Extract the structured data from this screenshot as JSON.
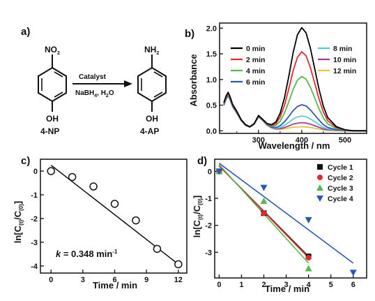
{
  "panels": {
    "a": {
      "label": "a)",
      "reactant": {
        "substituent_top": "NO",
        "substituent_top_sub": "2",
        "substituent_bottom": "OH",
        "name": "4-NP"
      },
      "product": {
        "substituent_top": "NH",
        "substituent_top_sub": "2",
        "substituent_bottom": "OH",
        "name": "4-AP"
      },
      "arrow_top": "Catalyst",
      "arrow_bottom_1": "NaBH",
      "arrow_bottom_sub": "4",
      "arrow_bottom_2": ", H",
      "arrow_bottom_sub2": "2",
      "arrow_bottom_3": "O"
    },
    "b": {
      "label": "b)"
    },
    "c": {
      "label": "c)",
      "annotation_k": "k",
      "annotation_rest": " = 0.348 min",
      "annotation_sup": "-1"
    },
    "d": {
      "label": "d)"
    }
  },
  "chart_data": [
    {
      "panel": "b",
      "type": "line",
      "xlabel": "Wavelength / nm",
      "ylabel": "Absorbance",
      "xlim": [
        210,
        550
      ],
      "ylim": [
        -0.05,
        2.1
      ],
      "xticks": [
        300,
        400,
        500
      ],
      "yticks": [
        0.0,
        0.5,
        1.0,
        1.5,
        2.0
      ],
      "ytick_labels": [
        "0.0",
        "0.5",
        "1.0",
        "1.5",
        "2.0"
      ],
      "legend_placement": "top",
      "series": [
        {
          "name": "0 min",
          "color": "#000000",
          "peak": 2.0
        },
        {
          "name": "2 min",
          "color": "#e8262e",
          "peak": 1.53
        },
        {
          "name": "4 min",
          "color": "#56b848",
          "peak": 1.05
        },
        {
          "name": "6 min",
          "color": "#2a56b8",
          "peak": 0.5
        },
        {
          "name": "8 min",
          "color": "#5ac8d8",
          "peak": 0.28
        },
        {
          "name": "10 min",
          "color": "#a23a9a",
          "peak": 0.15
        },
        {
          "name": "12 min",
          "color": "#e8c23a",
          "peak": 0.07
        }
      ],
      "x": [
        220,
        225,
        230,
        235,
        240,
        250,
        260,
        270,
        280,
        290,
        300,
        310,
        320,
        330,
        340,
        350,
        360,
        370,
        380,
        390,
        400,
        410,
        420,
        430,
        440,
        450,
        460,
        480,
        500,
        520,
        550
      ],
      "base_profile": [
        0.55,
        0.68,
        0.75,
        0.65,
        0.52,
        0.38,
        0.22,
        0.12,
        0.08,
        0.14,
        0.3,
        0.22,
        0.12,
        0.06,
        0.03,
        0.02,
        0.02,
        0.02,
        0.02,
        0.01,
        0.01,
        0.01,
        0.01,
        0.01,
        0.01,
        0.0,
        0.0,
        0.0,
        0.0,
        0.0,
        0.0
      ],
      "peak_profile": [
        0,
        0,
        0,
        0,
        0,
        0,
        0,
        0,
        0,
        0,
        0,
        0,
        0.01,
        0.03,
        0.07,
        0.16,
        0.31,
        0.52,
        0.75,
        0.93,
        1.0,
        0.95,
        0.8,
        0.6,
        0.4,
        0.24,
        0.13,
        0.04,
        0.01,
        0.0,
        0.0
      ]
    },
    {
      "panel": "c",
      "type": "scatter",
      "xlabel": "Time / min",
      "ylabel": "ln[C(t)/C(0)]",
      "xlim": [
        -1,
        12.8
      ],
      "ylim": [
        -4.3,
        0.5
      ],
      "xticks": [
        0,
        3,
        6,
        9,
        12
      ],
      "yticks": [
        0,
        -1,
        -2,
        -3,
        -4
      ],
      "x": [
        0,
        2,
        4,
        6,
        8,
        10,
        12
      ],
      "y": [
        0.0,
        -0.25,
        -0.65,
        -1.38,
        -2.08,
        -3.28,
        -3.93
      ],
      "fit": {
        "slope": -0.348,
        "intercept": 0.25,
        "x_range": [
          0,
          12
        ]
      }
    },
    {
      "panel": "d",
      "type": "scatter",
      "xlabel": "Time / min",
      "ylabel": "ln[C(t)/C(0)]",
      "xlim": [
        -0.2,
        6.6
      ],
      "ylim": [
        -3.95,
        0.45
      ],
      "xticks": [
        0,
        1,
        2,
        3,
        4,
        5,
        6
      ],
      "yticks": [
        0,
        -1,
        -2,
        -3
      ],
      "legend_placement": "top-right",
      "series": [
        {
          "name": "Cycle 1",
          "color": "#111111",
          "marker": "square",
          "x": [
            0,
            2,
            4
          ],
          "y": [
            0.0,
            -1.55,
            -3.15
          ],
          "fit": [
            [
              0,
              0.2
            ],
            [
              4,
              -3.15
            ]
          ]
        },
        {
          "name": "Cycle 2",
          "color": "#e8262e",
          "marker": "circle",
          "x": [
            0,
            2,
            4
          ],
          "y": [
            0.0,
            -1.55,
            -3.2
          ],
          "fit": [
            [
              0,
              0.2
            ],
            [
              4,
              -3.2
            ]
          ]
        },
        {
          "name": "Cycle 3",
          "color": "#56b848",
          "marker": "triangle-up",
          "x": [
            0,
            2,
            4
          ],
          "y": [
            0.0,
            -1.1,
            -3.6
          ],
          "fit": [
            [
              0,
              0.25
            ],
            [
              4,
              -3.4
            ]
          ]
        },
        {
          "name": "Cycle 4",
          "color": "#2a56b8",
          "marker": "triangle-down",
          "x": [
            0,
            2,
            4,
            6
          ],
          "y": [
            0.0,
            -0.6,
            -1.8,
            -3.75
          ],
          "fit": [
            [
              0,
              0.3
            ],
            [
              6,
              -3.4
            ]
          ]
        }
      ]
    }
  ]
}
